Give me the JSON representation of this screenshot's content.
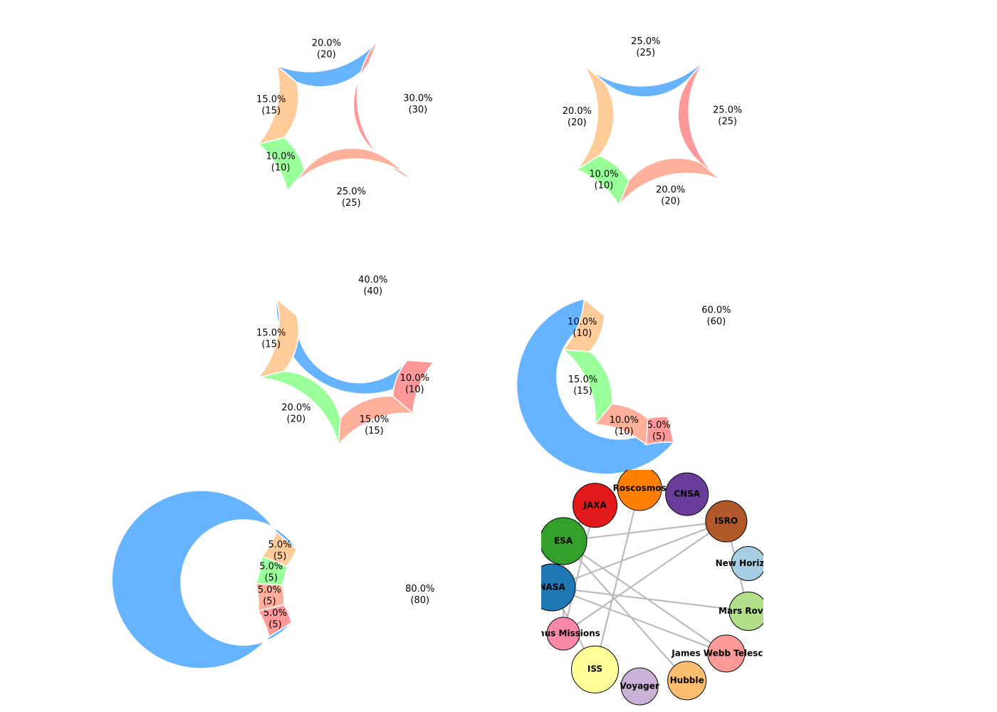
{
  "chart_data": [
    {
      "type": "pie",
      "style": "donut",
      "values": [
        20,
        30,
        25,
        10,
        15
      ],
      "colors": [
        "#66b3ff",
        "#ff9999",
        "#ffb09a",
        "#99ff99",
        "#ffcc99"
      ],
      "labels": [
        {
          "pct": "20.0%",
          "val": "(20)"
        },
        {
          "pct": "30.0%",
          "val": "(30)"
        },
        {
          "pct": "25.0%",
          "val": "(25)"
        },
        {
          "pct": "10.0%",
          "val": "(10)"
        },
        {
          "pct": "15.0%",
          "val": "(15)"
        }
      ]
    },
    {
      "type": "pie",
      "style": "donut",
      "values": [
        25,
        25,
        20,
        10,
        20
      ],
      "colors": [
        "#66b3ff",
        "#ff9999",
        "#ffb09a",
        "#99ff99",
        "#ffcc99"
      ],
      "labels": [
        {
          "pct": "25.0%",
          "val": "(25)"
        },
        {
          "pct": "25.0%",
          "val": "(25)"
        },
        {
          "pct": "20.0%",
          "val": "(20)"
        },
        {
          "pct": "10.0%",
          "val": "(10)"
        },
        {
          "pct": "20.0%",
          "val": "(20)"
        }
      ]
    },
    {
      "type": "pie",
      "style": "donut",
      "values": [
        40,
        10,
        15,
        20,
        15
      ],
      "colors": [
        "#66b3ff",
        "#ff9999",
        "#ffb09a",
        "#99ff99",
        "#ffcc99"
      ],
      "labels": [
        {
          "pct": "40.0%",
          "val": "(40)"
        },
        {
          "pct": "10.0%",
          "val": "(10)"
        },
        {
          "pct": "15.0%",
          "val": "(15)"
        },
        {
          "pct": "20.0%",
          "val": "(20)"
        },
        {
          "pct": "15.0%",
          "val": "(15)"
        }
      ]
    },
    {
      "type": "pie",
      "style": "donut",
      "values": [
        60,
        5,
        10,
        15,
        10
      ],
      "colors": [
        "#66b3ff",
        "#ff9999",
        "#ffb09a",
        "#99ff99",
        "#ffcc99"
      ],
      "labels": [
        {
          "pct": "60.0%",
          "val": "(60)"
        },
        {
          "pct": "5.0%",
          "val": "(5)"
        },
        {
          "pct": "10.0%",
          "val": "(10)"
        },
        {
          "pct": "15.0%",
          "val": "(15)"
        },
        {
          "pct": "10.0%",
          "val": "(10)"
        }
      ]
    },
    {
      "type": "pie",
      "style": "donut",
      "values": [
        80,
        5,
        5,
        5,
        5
      ],
      "colors": [
        "#66b3ff",
        "#ff9999",
        "#ffb09a",
        "#99ff99",
        "#ffcc99"
      ],
      "labels": [
        {
          "pct": "80.0%",
          "val": "(80)"
        },
        {
          "pct": "5.0%",
          "val": "(5)"
        },
        {
          "pct": "5.0%",
          "val": "(5)"
        },
        {
          "pct": "5.0%",
          "val": "(5)"
        },
        {
          "pct": "5.0%",
          "val": "(5)"
        }
      ]
    }
  ],
  "network": {
    "type": "network",
    "layout": "circular",
    "edge_color": "#bbbbbb",
    "nodes": [
      {
        "label": "NASA",
        "color": "#1f78b4"
      },
      {
        "label": "ESA",
        "color": "#33a02c"
      },
      {
        "label": "JAXA",
        "color": "#e31a1c"
      },
      {
        "label": "Roscosmos",
        "color": "#ff7f00"
      },
      {
        "label": "CNSA",
        "color": "#6a3d9a"
      },
      {
        "label": "ISRO",
        "color": "#b15928"
      },
      {
        "label": "New Horizons",
        "color": "#a6cee3"
      },
      {
        "label": "Mars Rovers",
        "color": "#b2df8a"
      },
      {
        "label": "James Webb Telescope",
        "color": "#fb9a99"
      },
      {
        "label": "Hubble",
        "color": "#fdbf6f"
      },
      {
        "label": "Voyager",
        "color": "#cab2d6"
      },
      {
        "label": "ISS",
        "color": "#ffff99"
      },
      {
        "label": "Venus Missions",
        "color": "#f88aa8"
      }
    ],
    "edges": [
      [
        "NASA",
        "Mars Rovers"
      ],
      [
        "NASA",
        "James Webb Telescope"
      ],
      [
        "NASA",
        "ISS"
      ],
      [
        "NASA",
        "ISRO"
      ],
      [
        "ESA",
        "James Webb Telescope"
      ],
      [
        "ESA",
        "Hubble"
      ],
      [
        "ESA",
        "Venus Missions"
      ],
      [
        "JAXA",
        "Venus Missions"
      ],
      [
        "Roscosmos",
        "ISS"
      ],
      [
        "Venus Missions",
        "ISRO"
      ],
      [
        "ESA",
        "ISRO"
      ],
      [
        "ISRO",
        "Mars Rovers"
      ],
      [
        "ESA",
        "JAXA"
      ]
    ]
  }
}
